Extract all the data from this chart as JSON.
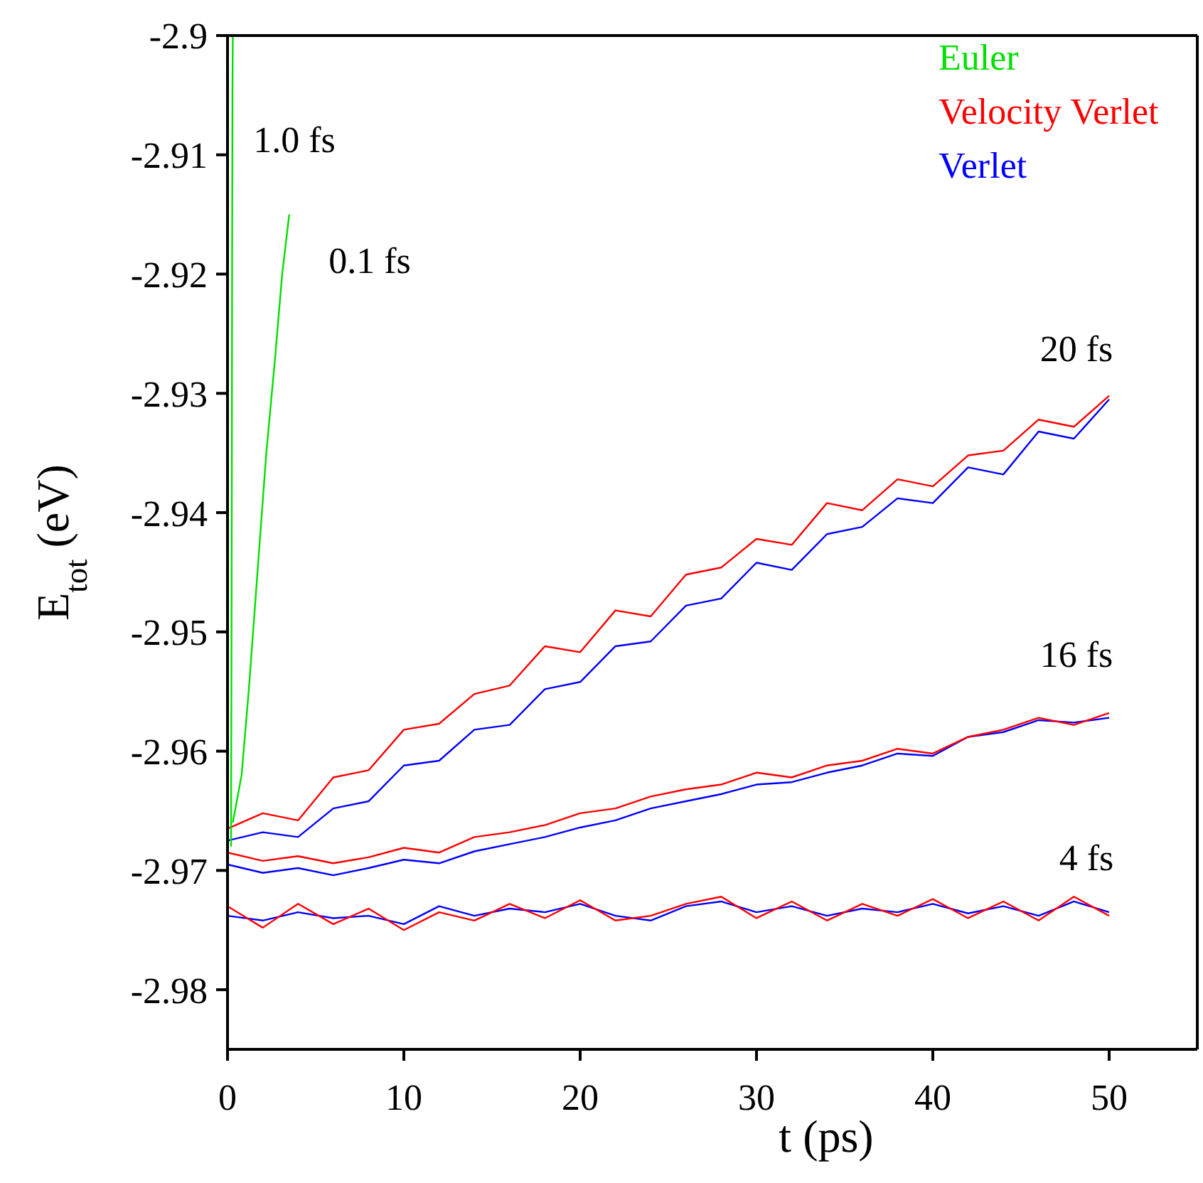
{
  "chart_data": {
    "type": "line",
    "xlabel": "t (ps)",
    "ylabel": "E$_{tot}$ (eV)",
    "xlim": [
      0,
      55
    ],
    "xticks": [
      0,
      10,
      20,
      30,
      40,
      50
    ],
    "ylim": [
      -2.985,
      -2.9
    ],
    "yticks": [
      -2.9,
      -2.91,
      -2.92,
      -2.93,
      -2.94,
      -2.95,
      -2.96,
      -2.97,
      -2.98
    ],
    "grid": false,
    "legend": "top right",
    "x": [
      0,
      2,
      4,
      6,
      8,
      10,
      12,
      14,
      16,
      18,
      20,
      22,
      24,
      26,
      28,
      30,
      32,
      34,
      36,
      38,
      40,
      42,
      44,
      46,
      48,
      50
    ],
    "series": [
      {
        "name": "Euler",
        "color": "#00e000",
        "x": [
          0.3,
          0.8,
          1.2,
          1.7,
          2.2,
          2.7,
          3.1,
          3.5
        ],
        "values": [
          -2.966,
          -2.962,
          -2.955,
          -2.945,
          -2.935,
          -2.927,
          -2.92,
          -2.915
        ]
      },
      {
        "color": "#00e000",
        "x": [
          0.2,
          0.22,
          0.24,
          0.26,
          0.28,
          0.3
        ],
        "values": [
          -2.968,
          -2.955,
          -2.94,
          -2.92,
          -2.905,
          -2.9
        ]
      },
      {
        "name": "Velocity Verlet",
        "color": "#ff0000",
        "values": [
          -2.9665,
          -2.9652,
          -2.9658,
          -2.9622,
          -2.9616,
          -2.9582,
          -2.9577,
          -2.9552,
          -2.9545,
          -2.9512,
          -2.9517,
          -2.9482,
          -2.9487,
          -2.9452,
          -2.9446,
          -2.9422,
          -2.9427,
          -2.9392,
          -2.9398,
          -2.9372,
          -2.9378,
          -2.9352,
          -2.9348,
          -2.9322,
          -2.9328,
          -2.9302
        ]
      },
      {
        "name": "Verlet",
        "color": "#0000ff",
        "values": [
          -2.9675,
          -2.9668,
          -2.9672,
          -2.9648,
          -2.9642,
          -2.9612,
          -2.9608,
          -2.9582,
          -2.9578,
          -2.9548,
          -2.9542,
          -2.9512,
          -2.9508,
          -2.9478,
          -2.9472,
          -2.9442,
          -2.9448,
          -2.9418,
          -2.9412,
          -2.9388,
          -2.9392,
          -2.9362,
          -2.9368,
          -2.9332,
          -2.9338,
          -2.9305
        ]
      },
      {
        "color": "#ff0000",
        "values": [
          -2.9685,
          -2.9692,
          -2.9688,
          -2.9694,
          -2.9689,
          -2.9681,
          -2.9685,
          -2.9672,
          -2.9668,
          -2.9662,
          -2.9652,
          -2.9648,
          -2.9638,
          -2.9632,
          -2.9628,
          -2.9618,
          -2.9622,
          -2.9612,
          -2.9608,
          -2.9598,
          -2.9602,
          -2.9588,
          -2.9582,
          -2.9572,
          -2.9578,
          -2.9568
        ]
      },
      {
        "color": "#0000ff",
        "values": [
          -2.9695,
          -2.9702,
          -2.9698,
          -2.9704,
          -2.9698,
          -2.9691,
          -2.9694,
          -2.9684,
          -2.9678,
          -2.9672,
          -2.9664,
          -2.9658,
          -2.9648,
          -2.9642,
          -2.9636,
          -2.9628,
          -2.9626,
          -2.9618,
          -2.9612,
          -2.9602,
          -2.9604,
          -2.9588,
          -2.9584,
          -2.9574,
          -2.9576,
          -2.9572
        ]
      },
      {
        "color": "#ff0000",
        "values": [
          -2.973,
          -2.9748,
          -2.9728,
          -2.9745,
          -2.9732,
          -2.975,
          -2.9735,
          -2.9742,
          -2.9728,
          -2.974,
          -2.9725,
          -2.9742,
          -2.9738,
          -2.9728,
          -2.9722,
          -2.974,
          -2.9726,
          -2.9742,
          -2.9728,
          -2.9738,
          -2.9724,
          -2.974,
          -2.9726,
          -2.9742,
          -2.9722,
          -2.9738
        ]
      },
      {
        "color": "#0000ff",
        "values": [
          -2.9738,
          -2.9742,
          -2.9735,
          -2.974,
          -2.9738,
          -2.9745,
          -2.973,
          -2.9738,
          -2.9732,
          -2.9735,
          -2.9728,
          -2.9738,
          -2.9742,
          -2.973,
          -2.9726,
          -2.9735,
          -2.973,
          -2.9738,
          -2.9732,
          -2.9735,
          -2.9728,
          -2.9736,
          -2.973,
          -2.9738,
          -2.9726,
          -2.9735
        ]
      }
    ],
    "annotations": [
      "1.0 fs",
      "0.1 fs",
      "20 fs",
      "16 fs",
      "4 fs"
    ]
  }
}
